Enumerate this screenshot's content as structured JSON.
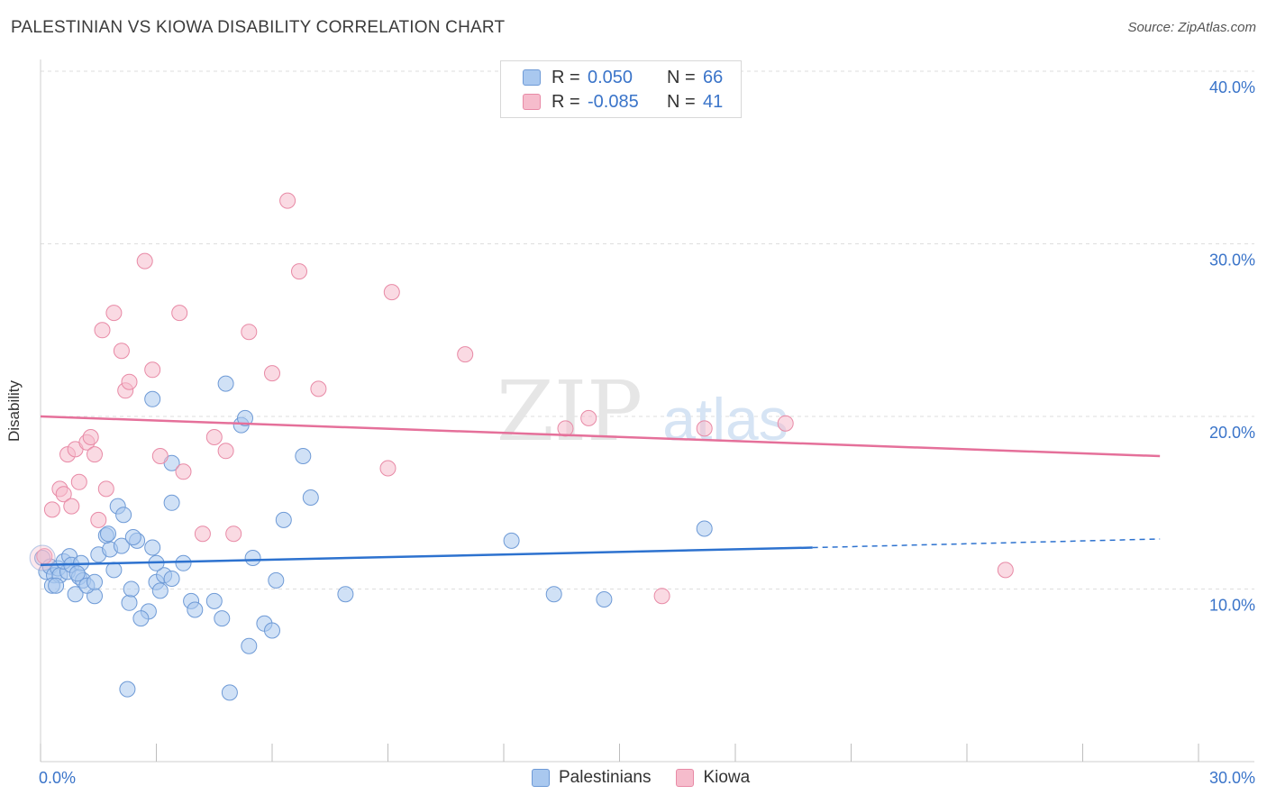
{
  "title": "PALESTINIAN VS KIOWA DISABILITY CORRELATION CHART",
  "source": "Source: ZipAtlas.com",
  "watermark": {
    "zip": "ZIP",
    "atlas": "atlas"
  },
  "legend": {
    "rows": [
      {
        "r_label": "R =",
        "r_value": "0.050",
        "n_label": "N =",
        "n_value": "66"
      },
      {
        "r_label": "R =",
        "r_value": "-0.085",
        "n_label": "N =",
        "n_value": "41"
      }
    ]
  },
  "colors": {
    "palestinians_fill": "#a9c8ef",
    "palestinians_stroke": "#6e9ad6",
    "palestinians_line": "#2d72cf",
    "kiowa_fill": "#f6bccc",
    "kiowa_stroke": "#e88aa6",
    "kiowa_line": "#e5709a",
    "axis_text": "#3a74c9"
  },
  "chart_data": {
    "type": "scatter",
    "title": "PALESTINIAN VS KIOWA DISABILITY CORRELATION CHART",
    "xlabel": "",
    "ylabel": "Disability",
    "xlim": [
      0,
      30
    ],
    "ylim": [
      0,
      40
    ],
    "x_tick_labels": [
      "0.0%",
      "30.0%"
    ],
    "y_ticks": [
      10,
      20,
      30,
      40
    ],
    "y_tick_labels": [
      "10.0%",
      "20.0%",
      "30.0%",
      "40.0%"
    ],
    "grid": true,
    "legend_position": "top-center",
    "series": [
      {
        "name": "Palestinians",
        "r": 0.05,
        "n": 66,
        "trend": {
          "x_start": 0,
          "y_start": 11.4,
          "x_solid_end": 20,
          "y_solid_end": 12.4,
          "x_end": 29,
          "y_end": 12.9
        },
        "points": [
          [
            0.05,
            11.8
          ],
          [
            0.15,
            11.0
          ],
          [
            0.25,
            11.3
          ],
          [
            0.35,
            10.8
          ],
          [
            0.45,
            11.2
          ],
          [
            0.5,
            10.8
          ],
          [
            0.7,
            11.0
          ],
          [
            0.3,
            10.2
          ],
          [
            0.6,
            11.6
          ],
          [
            0.75,
            11.9
          ],
          [
            0.8,
            11.4
          ],
          [
            1.0,
            10.7
          ],
          [
            1.1,
            10.5
          ],
          [
            1.05,
            11.5
          ],
          [
            0.95,
            10.9
          ],
          [
            0.9,
            9.7
          ],
          [
            1.4,
            9.6
          ],
          [
            1.2,
            10.2
          ],
          [
            1.5,
            12.0
          ],
          [
            1.8,
            12.3
          ],
          [
            1.9,
            11.1
          ],
          [
            2.1,
            12.5
          ],
          [
            2.5,
            12.8
          ],
          [
            2.3,
            9.2
          ],
          [
            2.8,
            8.7
          ],
          [
            2.6,
            8.3
          ],
          [
            3.0,
            10.4
          ],
          [
            3.2,
            10.8
          ],
          [
            3.1,
            9.9
          ],
          [
            3.4,
            10.6
          ],
          [
            3.7,
            11.5
          ],
          [
            3.9,
            9.3
          ],
          [
            4.0,
            8.8
          ],
          [
            4.5,
            9.3
          ],
          [
            4.7,
            8.3
          ],
          [
            1.7,
            13.1
          ],
          [
            2.0,
            14.8
          ],
          [
            2.15,
            14.3
          ],
          [
            2.4,
            13.0
          ],
          [
            3.4,
            17.3
          ],
          [
            3.4,
            15.0
          ],
          [
            2.9,
            21.0
          ],
          [
            4.8,
            21.9
          ],
          [
            5.2,
            19.5
          ],
          [
            5.3,
            19.9
          ],
          [
            5.5,
            11.8
          ],
          [
            5.8,
            8.0
          ],
          [
            6.0,
            7.6
          ],
          [
            6.1,
            10.5
          ],
          [
            6.3,
            14.0
          ],
          [
            6.8,
            17.7
          ],
          [
            7.0,
            15.3
          ],
          [
            7.9,
            9.7
          ],
          [
            12.2,
            12.8
          ],
          [
            13.3,
            9.7
          ],
          [
            14.6,
            9.4
          ],
          [
            17.2,
            13.5
          ],
          [
            4.9,
            4.0
          ],
          [
            3.0,
            11.5
          ],
          [
            1.4,
            10.4
          ],
          [
            1.75,
            13.2
          ],
          [
            2.35,
            10.0
          ],
          [
            2.9,
            12.4
          ],
          [
            5.4,
            6.7
          ],
          [
            0.4,
            10.2
          ],
          [
            2.25,
            4.2
          ]
        ]
      },
      {
        "name": "Kiowa",
        "r": -0.085,
        "n": 41,
        "trend": {
          "x_start": 0,
          "y_start": 20.0,
          "x_end": 29,
          "y_end": 17.7
        },
        "points": [
          [
            0.1,
            11.9
          ],
          [
            0.3,
            14.6
          ],
          [
            0.5,
            15.8
          ],
          [
            0.6,
            15.5
          ],
          [
            0.7,
            17.8
          ],
          [
            0.8,
            14.8
          ],
          [
            0.9,
            18.1
          ],
          [
            1.0,
            16.2
          ],
          [
            1.2,
            18.5
          ],
          [
            1.3,
            18.8
          ],
          [
            1.4,
            17.8
          ],
          [
            1.5,
            14.0
          ],
          [
            1.6,
            25.0
          ],
          [
            1.7,
            15.8
          ],
          [
            1.9,
            26.0
          ],
          [
            2.1,
            23.8
          ],
          [
            2.2,
            21.5
          ],
          [
            2.3,
            22.0
          ],
          [
            2.7,
            29.0
          ],
          [
            2.9,
            22.7
          ],
          [
            3.1,
            17.7
          ],
          [
            3.6,
            26.0
          ],
          [
            3.7,
            16.8
          ],
          [
            4.2,
            13.2
          ],
          [
            4.5,
            18.8
          ],
          [
            4.8,
            18.0
          ],
          [
            5.0,
            13.2
          ],
          [
            5.4,
            24.9
          ],
          [
            6.0,
            22.5
          ],
          [
            6.4,
            32.5
          ],
          [
            6.7,
            28.4
          ],
          [
            7.2,
            21.6
          ],
          [
            9.0,
            17.0
          ],
          [
            9.1,
            27.2
          ],
          [
            11.0,
            23.6
          ],
          [
            13.6,
            19.3
          ],
          [
            14.2,
            19.9
          ],
          [
            16.1,
            9.6
          ],
          [
            17.2,
            19.3
          ],
          [
            19.3,
            19.6
          ],
          [
            25.0,
            11.1
          ]
        ]
      }
    ]
  },
  "bottom_legend": [
    "Palestinians",
    "Kiowa"
  ]
}
